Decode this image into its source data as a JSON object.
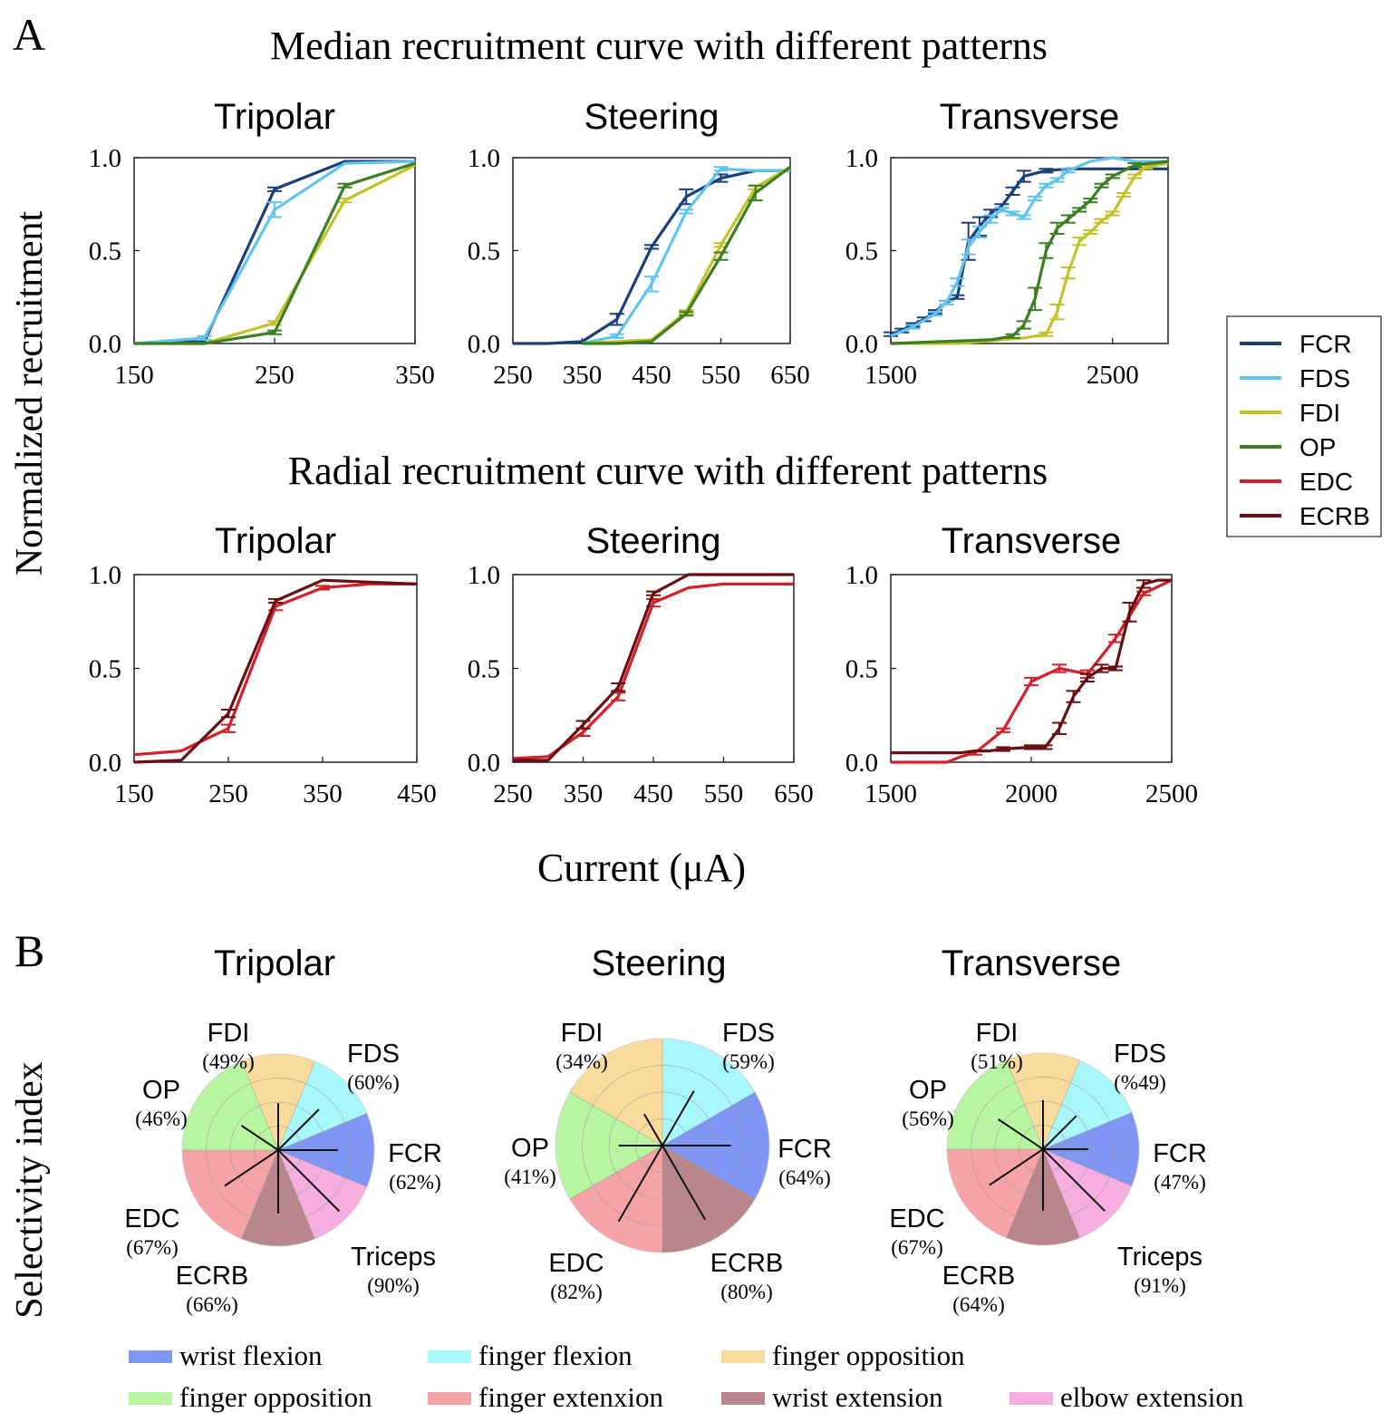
{
  "labels": {
    "panel_a": "A",
    "panel_b": "B",
    "median_title": "Median recruitment curve with different patterns",
    "radial_title": "Radial recruitment curve with different patterns",
    "ylabel_a": "Normalized recruitment",
    "xlabel_a": "Current (μA)",
    "ylabel_b": "Selectivity index"
  },
  "colors": {
    "FCR": "#1a3f7a",
    "FDS": "#62c3ec",
    "FDI": "#c4c22a",
    "OP": "#3b7f22",
    "EDC": "#d3202a",
    "ECRB": "#6b0f12"
  },
  "legend": [
    "FCR",
    "FDS",
    "FDI",
    "OP",
    "EDC",
    "ECRB"
  ],
  "chart_data": [
    {
      "type": "line",
      "title": "Tripolar",
      "row": "median",
      "xlim": [
        150,
        350
      ],
      "ylim": [
        0,
        1
      ],
      "xticks": [
        150,
        250,
        350
      ],
      "yticks": [
        0.0,
        0.5,
        1.0
      ],
      "series": [
        {
          "name": "FCR",
          "x": [
            150,
            200,
            250,
            300,
            350
          ],
          "y": [
            0.0,
            0.01,
            0.83,
            0.98,
            0.98
          ],
          "err": [
            0,
            0,
            0.01,
            0,
            0
          ]
        },
        {
          "name": "FDS",
          "x": [
            150,
            200,
            250,
            300,
            350
          ],
          "y": [
            0.0,
            0.03,
            0.72,
            0.97,
            0.98
          ],
          "err": [
            0,
            0.01,
            0.04,
            0,
            0
          ]
        },
        {
          "name": "FDI",
          "x": [
            150,
            200,
            250,
            300,
            350
          ],
          "y": [
            0.0,
            0.0,
            0.11,
            0.77,
            0.96
          ],
          "err": [
            0,
            0,
            0.01,
            0.01,
            0
          ]
        },
        {
          "name": "OP",
          "x": [
            150,
            200,
            250,
            300,
            350
          ],
          "y": [
            0.0,
            0.0,
            0.06,
            0.85,
            0.97
          ],
          "err": [
            0,
            0,
            0.01,
            0.01,
            0
          ]
        }
      ]
    },
    {
      "type": "line",
      "title": "Steering",
      "row": "median",
      "xlim": [
        250,
        650
      ],
      "ylim": [
        0,
        1
      ],
      "xticks": [
        250,
        350,
        450,
        550,
        650
      ],
      "yticks": [
        0.0,
        0.5,
        1.0
      ],
      "series": [
        {
          "name": "FCR",
          "x": [
            250,
            300,
            350,
            400,
            450,
            500,
            550,
            600,
            650
          ],
          "y": [
            0.0,
            0.0,
            0.01,
            0.13,
            0.52,
            0.79,
            0.89,
            0.93,
            0.93
          ],
          "err": [
            0,
            0,
            0,
            0.03,
            0.01,
            0.04,
            0.02,
            0,
            0
          ]
        },
        {
          "name": "FDS",
          "x": [
            350,
            400,
            450,
            500,
            550,
            600,
            650
          ],
          "y": [
            0.0,
            0.04,
            0.32,
            0.71,
            0.94,
            0.93,
            0.93
          ],
          "err": [
            0,
            0.01,
            0.04,
            0.01,
            0.01,
            0,
            0
          ]
        },
        {
          "name": "FDI",
          "x": [
            350,
            400,
            450,
            500,
            550,
            600,
            650
          ],
          "y": [
            0.0,
            0.01,
            0.02,
            0.17,
            0.53,
            0.84,
            0.95
          ],
          "err": [
            0,
            0,
            0,
            0.01,
            0.01,
            0.01,
            0
          ]
        },
        {
          "name": "OP",
          "x": [
            350,
            400,
            450,
            500,
            550,
            600,
            650
          ],
          "y": [
            0.0,
            0.0,
            0.01,
            0.16,
            0.47,
            0.81,
            0.95
          ],
          "err": [
            0,
            0,
            0,
            0.01,
            0.02,
            0.04,
            0
          ]
        }
      ]
    },
    {
      "type": "line",
      "title": "Transverse",
      "row": "median",
      "xlim": [
        1500,
        2750
      ],
      "ylim": [
        0,
        1
      ],
      "xticks": [
        1500,
        2500
      ],
      "yticks": [
        0.0,
        0.5,
        1.0
      ],
      "series": [
        {
          "name": "FCR",
          "x": [
            1500,
            1550,
            1600,
            1650,
            1700,
            1750,
            1800,
            1850,
            1900,
            1950,
            2000,
            2050,
            2100,
            2200,
            2300,
            2400,
            2500,
            2600,
            2750
          ],
          "y": [
            0.05,
            0.07,
            0.1,
            0.13,
            0.17,
            0.22,
            0.25,
            0.55,
            0.63,
            0.7,
            0.74,
            0.82,
            0.9,
            0.93,
            0.94,
            0.94,
            0.94,
            0.94,
            0.94
          ],
          "err": [
            0.01,
            0.01,
            0.01,
            0.01,
            0.01,
            0.01,
            0.01,
            0.1,
            0.05,
            0.02,
            0.01,
            0.02,
            0.03,
            0.01,
            0,
            0,
            0,
            0,
            0
          ]
        },
        {
          "name": "FDS",
          "x": [
            1500,
            1600,
            1700,
            1750,
            1800,
            1850,
            1900,
            1950,
            2000,
            2050,
            2100,
            2150,
            2200,
            2250,
            2300,
            2400,
            2500,
            2600,
            2750
          ],
          "y": [
            0.04,
            0.09,
            0.16,
            0.22,
            0.33,
            0.52,
            0.6,
            0.67,
            0.72,
            0.7,
            0.68,
            0.78,
            0.85,
            0.88,
            0.93,
            0.98,
            1.0,
            0.98,
            0.98
          ],
          "err": [
            0,
            0.01,
            0.01,
            0.01,
            0.02,
            0.04,
            0.03,
            0.02,
            0.01,
            0.01,
            0.01,
            0.01,
            0.01,
            0.01,
            0.01,
            0,
            0,
            0,
            0
          ]
        },
        {
          "name": "FDI",
          "x": [
            1500,
            1800,
            2000,
            2100,
            2200,
            2250,
            2300,
            2350,
            2400,
            2450,
            2500,
            2550,
            2600,
            2650,
            2750
          ],
          "y": [
            0.0,
            0.0,
            0.02,
            0.03,
            0.05,
            0.17,
            0.38,
            0.55,
            0.6,
            0.66,
            0.7,
            0.8,
            0.9,
            0.95,
            0.97
          ],
          "err": [
            0,
            0,
            0,
            0,
            0.01,
            0.04,
            0.03,
            0.02,
            0.01,
            0.01,
            0.01,
            0.01,
            0.01,
            0.01,
            0
          ]
        },
        {
          "name": "OP",
          "x": [
            1500,
            1950,
            2050,
            2100,
            2150,
            2200,
            2250,
            2300,
            2350,
            2400,
            2450,
            2500,
            2600,
            2750
          ],
          "y": [
            0.0,
            0.02,
            0.04,
            0.1,
            0.24,
            0.5,
            0.62,
            0.67,
            0.72,
            0.77,
            0.85,
            0.9,
            0.96,
            0.98
          ],
          "err": [
            0,
            0,
            0.01,
            0.02,
            0.06,
            0.04,
            0.03,
            0.02,
            0.01,
            0.01,
            0.01,
            0.01,
            0.01,
            0
          ]
        }
      ]
    },
    {
      "type": "line",
      "title": "Tripolar",
      "row": "radial",
      "xlim": [
        150,
        450
      ],
      "ylim": [
        0,
        1
      ],
      "xticks": [
        150,
        250,
        350,
        450
      ],
      "yticks": [
        0.0,
        0.5,
        1.0
      ],
      "series": [
        {
          "name": "EDC",
          "x": [
            150,
            200,
            250,
            300,
            350,
            400,
            450
          ],
          "y": [
            0.04,
            0.06,
            0.18,
            0.83,
            0.93,
            0.95,
            0.95
          ],
          "err": [
            0,
            0,
            0.02,
            0.02,
            0.01,
            0,
            0
          ]
        },
        {
          "name": "ECRB",
          "x": [
            150,
            200,
            250,
            300,
            350,
            400,
            450
          ],
          "y": [
            0.0,
            0.01,
            0.26,
            0.86,
            0.97,
            0.96,
            0.95
          ],
          "err": [
            0,
            0,
            0.02,
            0.01,
            0,
            0,
            0
          ]
        }
      ]
    },
    {
      "type": "line",
      "title": "Steering",
      "row": "radial",
      "xlim": [
        250,
        650
      ],
      "ylim": [
        0,
        1
      ],
      "xticks": [
        250,
        350,
        450,
        550,
        650
      ],
      "yticks": [
        0.0,
        0.5,
        1.0
      ],
      "series": [
        {
          "name": "EDC",
          "x": [
            250,
            300,
            350,
            400,
            450,
            500,
            550,
            600,
            650
          ],
          "y": [
            0.02,
            0.03,
            0.16,
            0.35,
            0.85,
            0.93,
            0.95,
            0.95,
            0.95
          ],
          "err": [
            0,
            0,
            0.02,
            0.02,
            0.02,
            0,
            0,
            0,
            0
          ]
        },
        {
          "name": "ECRB",
          "x": [
            250,
            300,
            350,
            400,
            450,
            500,
            550,
            600,
            650
          ],
          "y": [
            0.01,
            0.01,
            0.2,
            0.4,
            0.9,
            1.0,
            1.0,
            1.0,
            1.0
          ],
          "err": [
            0,
            0,
            0.02,
            0.02,
            0.01,
            0,
            0,
            0,
            0
          ]
        }
      ]
    },
    {
      "type": "line",
      "title": "Transverse",
      "row": "radial",
      "xlim": [
        1500,
        2500
      ],
      "ylim": [
        0,
        1
      ],
      "xticks": [
        1500,
        2000,
        2500
      ],
      "yticks": [
        0.0,
        0.5,
        1.0
      ],
      "series": [
        {
          "name": "EDC",
          "x": [
            1500,
            1700,
            1750,
            1800,
            1900,
            2000,
            2100,
            2200,
            2300,
            2400,
            2500
          ],
          "y": [
            0.0,
            0.0,
            0.03,
            0.05,
            0.17,
            0.43,
            0.5,
            0.47,
            0.66,
            0.9,
            0.97
          ],
          "err": [
            0,
            0,
            0,
            0.01,
            0.01,
            0.02,
            0.02,
            0.02,
            0.02,
            0.01,
            0
          ]
        },
        {
          "name": "ECRB",
          "x": [
            1500,
            1700,
            1750,
            1800,
            1850,
            1900,
            2000,
            2050,
            2100,
            2150,
            2200,
            2250,
            2300,
            2350,
            2400,
            2450,
            2500
          ],
          "y": [
            0.05,
            0.05,
            0.05,
            0.06,
            0.06,
            0.07,
            0.08,
            0.08,
            0.18,
            0.35,
            0.45,
            0.5,
            0.5,
            0.8,
            0.95,
            0.97,
            0.97
          ],
          "err": [
            0,
            0,
            0,
            0,
            0,
            0.01,
            0.01,
            0.01,
            0.03,
            0.03,
            0.02,
            0.02,
            0.01,
            0.05,
            0.02,
            0,
            0
          ]
        }
      ]
    },
    {
      "type": "pie",
      "title": "Tripolar",
      "slices": [
        {
          "name": "FCR",
          "value": "62%",
          "r": 0.62
        },
        {
          "name": "FDS",
          "value": "60%",
          "r": 0.6
        },
        {
          "name": "FDI",
          "value": "49%",
          "r": 0.49
        },
        {
          "name": "OP",
          "value": "46%",
          "r": 0.46
        },
        {
          "name": "EDC",
          "value": "67%",
          "r": 0.67
        },
        {
          "name": "ECRB",
          "value": "66%",
          "r": 0.66
        },
        {
          "name": "Triceps",
          "value": "90%",
          "r": 0.9
        }
      ]
    },
    {
      "type": "pie",
      "title": "Steering",
      "slices": [
        {
          "name": "FCR",
          "value": "64%",
          "r": 0.64
        },
        {
          "name": "FDS",
          "value": "59%",
          "r": 0.59
        },
        {
          "name": "FDI",
          "value": "34%",
          "r": 0.34
        },
        {
          "name": "OP",
          "value": "41%",
          "r": 0.41
        },
        {
          "name": "EDC",
          "value": "82%",
          "r": 0.82
        },
        {
          "name": "ECRB",
          "value": "80%",
          "r": 0.8
        }
      ]
    },
    {
      "type": "pie",
      "title": "Transverse",
      "slices": [
        {
          "name": "FCR",
          "value": "47%",
          "r": 0.47
        },
        {
          "name": "FDS",
          "value": "%49",
          "r": 0.49
        },
        {
          "name": "FDI",
          "value": "51%",
          "r": 0.51
        },
        {
          "name": "OP",
          "value": "56%",
          "r": 0.56
        },
        {
          "name": "EDC",
          "value": "67%",
          "r": 0.67
        },
        {
          "name": "ECRB",
          "value": "64%",
          "r": 0.64
        },
        {
          "name": "Triceps",
          "value": "91%",
          "r": 0.91
        }
      ]
    }
  ],
  "function_colors": {
    "wrist flexion": "#8096f5",
    "finger flexion": "#a8f7fa",
    "finger opposition (FDI)": "#f9db9b",
    "finger opposition (OP)": "#b8f5a0",
    "finger extenxion": "#f5a3a7",
    "wrist extension": "#b9868b",
    "elbow extension": "#f6aee0"
  },
  "function_legend": [
    {
      "label": "wrist flexion",
      "color": "#8096f5"
    },
    {
      "label": "finger flexion",
      "color": "#a8f7fa"
    },
    {
      "label": "finger opposition",
      "color": "#f9db9b"
    },
    {
      "label": "finger opposition",
      "color": "#b8f5a0"
    },
    {
      "label": "finger extenxion",
      "color": "#f5a3a7"
    },
    {
      "label": "wrist extension",
      "color": "#b9868b"
    },
    {
      "label": "elbow extension",
      "color": "#f6aee0"
    }
  ]
}
